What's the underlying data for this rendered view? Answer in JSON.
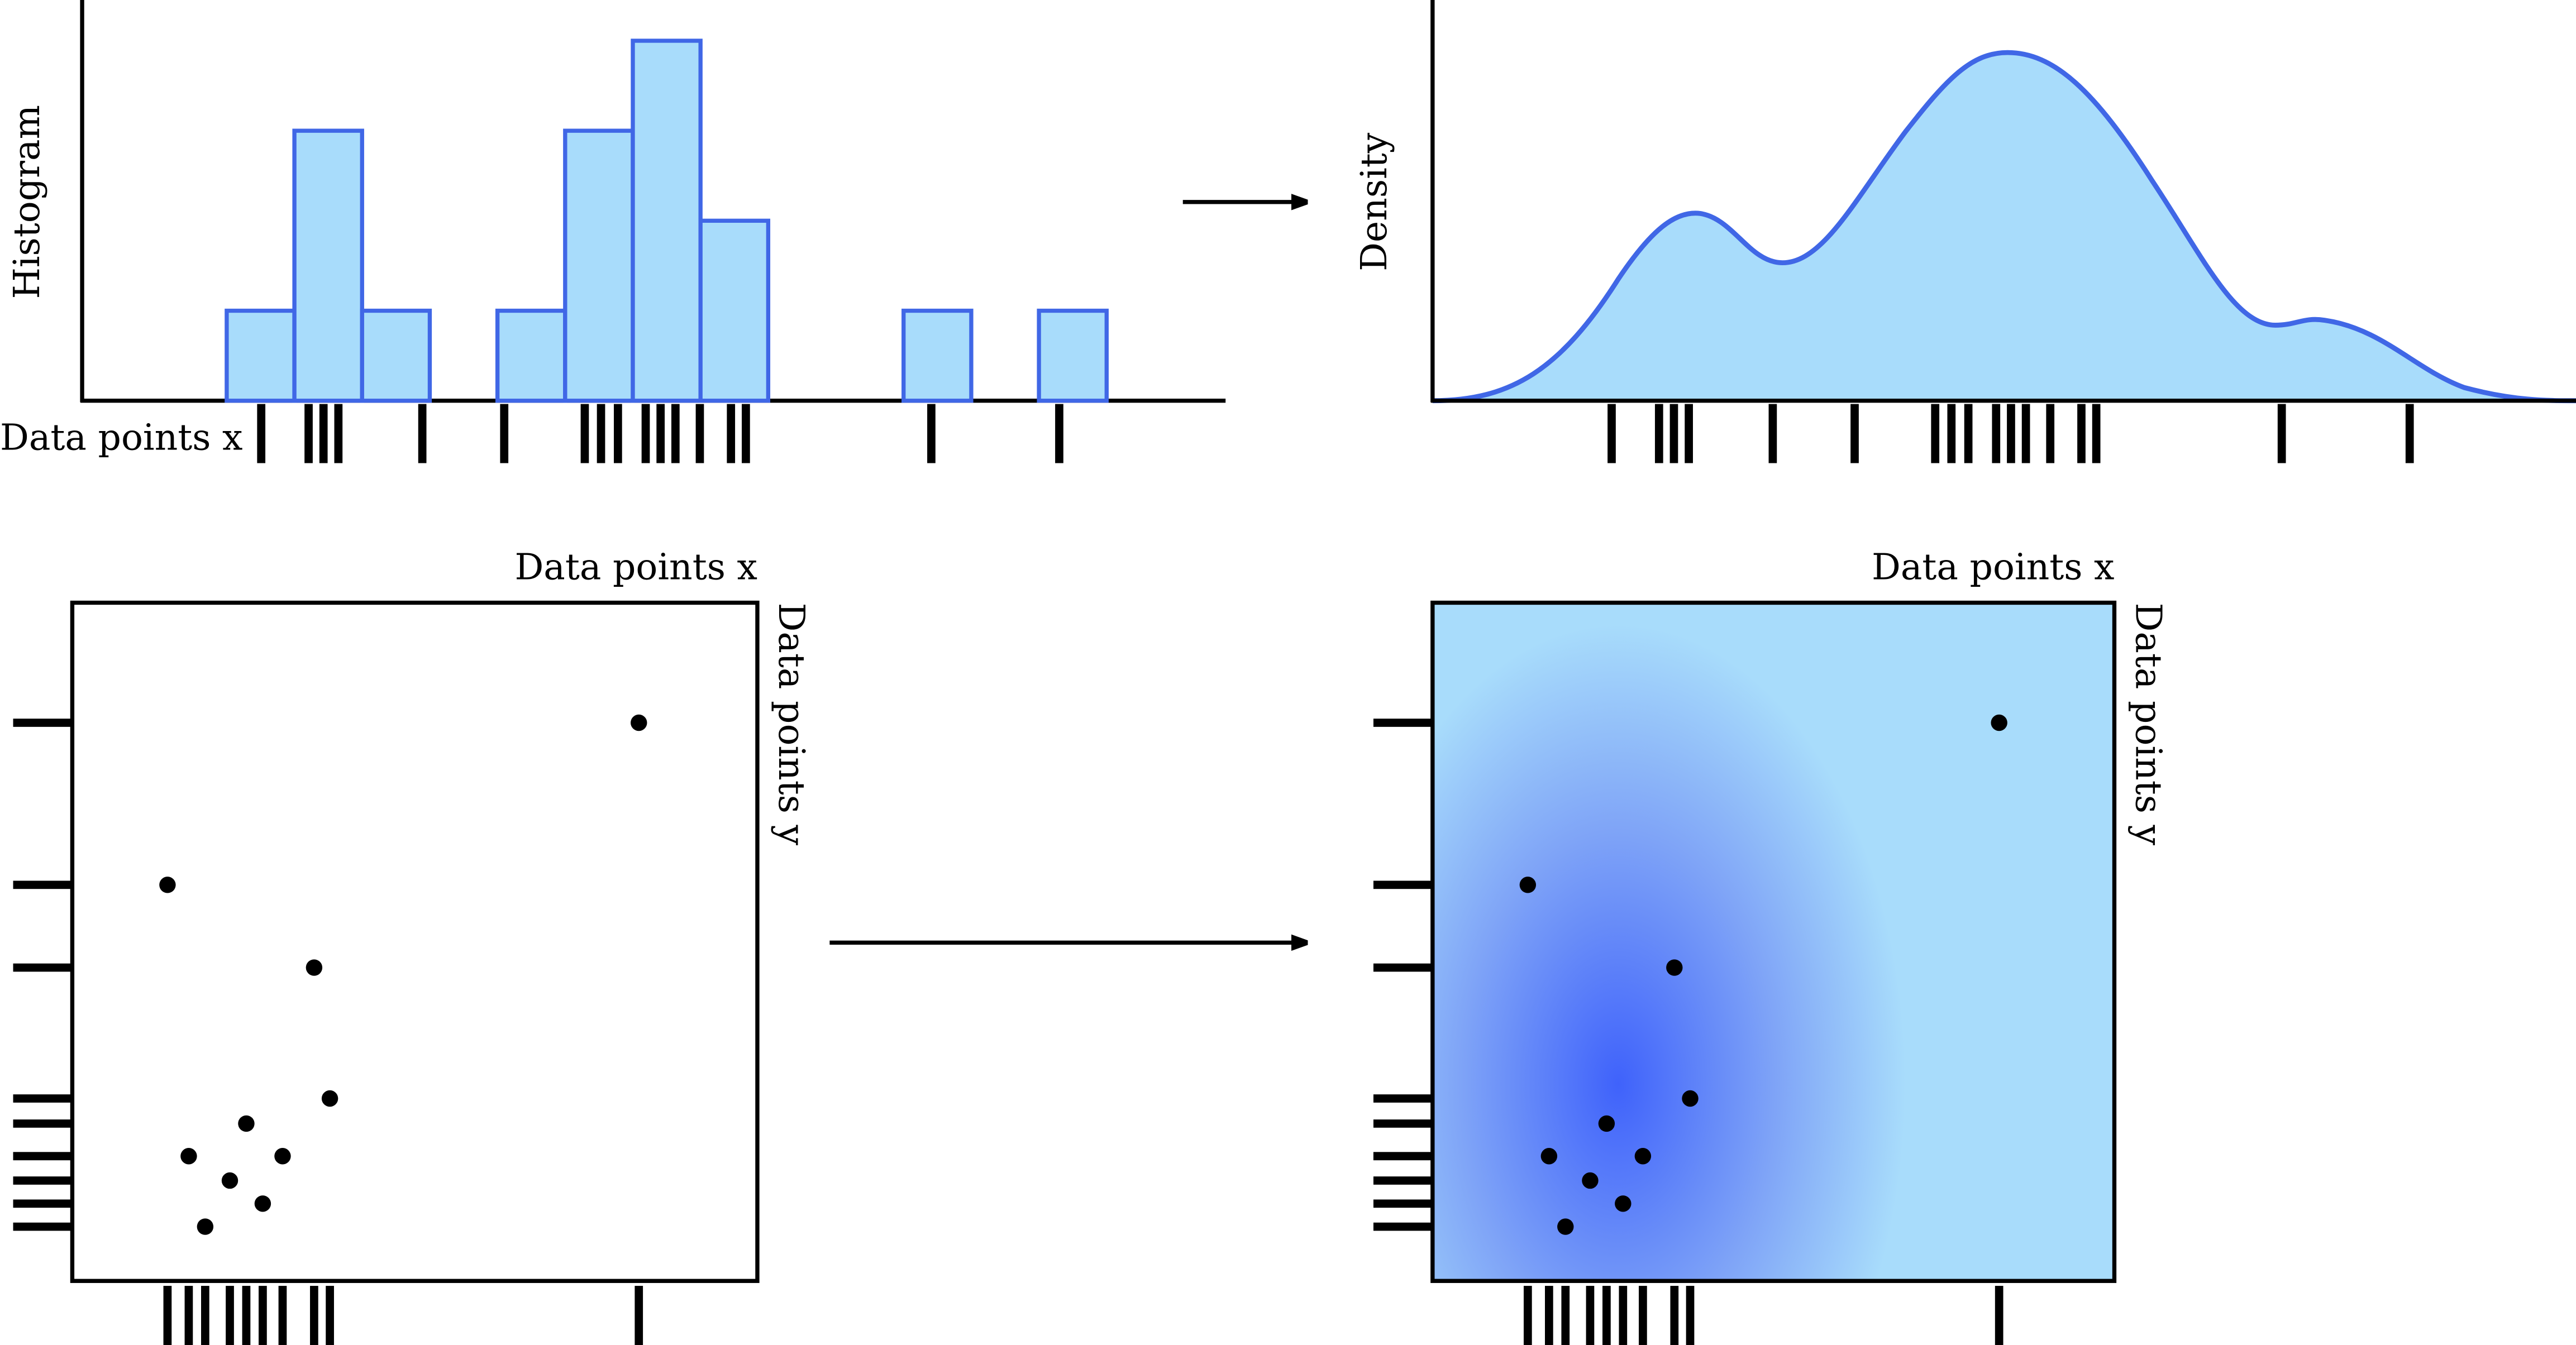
{
  "histogram": {
    "ylabel": "Histogram",
    "xlabel": "Data points x",
    "bins": [
      0,
      1,
      2,
      3,
      4,
      5,
      6,
      7,
      8,
      9,
      10,
      11,
      12,
      13
    ],
    "counts": [
      1,
      3,
      1,
      0,
      1,
      3,
      4,
      2,
      0,
      0,
      1,
      0,
      1
    ]
  },
  "density": {
    "ylabel": "Density"
  },
  "data_points_x": [
    0.51,
    1.21,
    1.43,
    1.65,
    2.89,
    4.1,
    5.29,
    5.53,
    5.78,
    6.19,
    6.41,
    6.63,
    6.99,
    7.45,
    7.67,
    10.41,
    12.3
  ],
  "scatter": {
    "xlabel": "Data points x",
    "ylabel": "Data points y",
    "x": [
      82.7,
      13.9,
      35.3,
      37.6,
      25.4,
      17.0,
      30.7,
      23.0,
      27.8,
      19.4
    ],
    "y": [
      82.3,
      58.4,
      46.2,
      26.9,
      23.2,
      18.4,
      18.4,
      14.8,
      11.4,
      8.0
    ]
  },
  "kde2d": {
    "xlabel": "Data points x",
    "ylabel": "Data points y"
  }
}
